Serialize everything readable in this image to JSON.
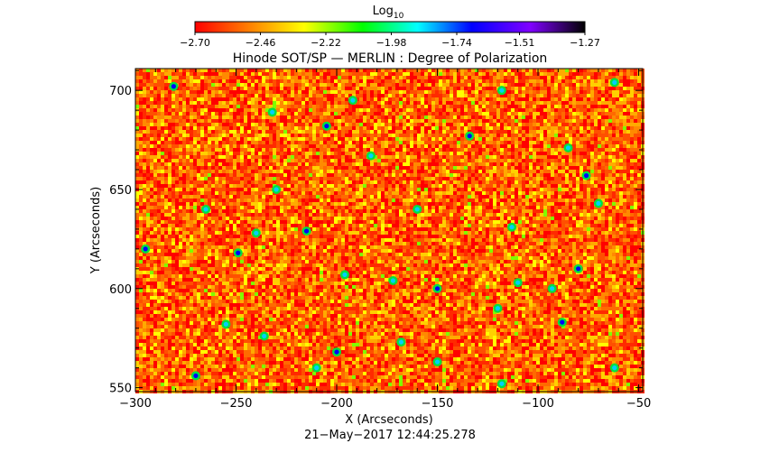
{
  "chart_data": {
    "type": "heatmap",
    "title": "Hinode SOT/SP — MERLIN : Degree of Polarization",
    "xlabel": "X (Arcseconds)",
    "ylabel": "Y (Arcseconds)",
    "timestamp": "21−May−2017 12:44:25.278",
    "xlim": [
      -300,
      -48
    ],
    "ylim": [
      548,
      711
    ],
    "x_ticks": [
      -300,
      -250,
      -200,
      -150,
      -100,
      -50
    ],
    "x_tick_labels": [
      "−300",
      "−250",
      "−200",
      "−150",
      "−100",
      "−50"
    ],
    "y_ticks": [
      550,
      600,
      650,
      700
    ],
    "y_tick_labels": [
      "550",
      "600",
      "650",
      "700"
    ],
    "colorbar": {
      "label_base": "Log",
      "label_sub": "10",
      "range": [
        -2.7,
        -1.27
      ],
      "ticks": [
        -2.7,
        -2.46,
        -2.22,
        -1.98,
        -1.74,
        -1.51,
        -1.27
      ],
      "tick_labels": [
        "−2.70",
        "−2.46",
        "−2.22",
        "−1.98",
        "−1.74",
        "−1.51",
        "−1.27"
      ],
      "colormap": [
        "#ff0000",
        "#ff8000",
        "#ffff00",
        "#00ff00",
        "#00ffff",
        "#0000ff",
        "#8000ff",
        "#000000"
      ]
    },
    "field_description_values": {
      "dominant_log10_range": [
        -2.7,
        -2.3
      ],
      "bright_patch_log10_range": [
        -2.0,
        -1.5
      ]
    }
  }
}
